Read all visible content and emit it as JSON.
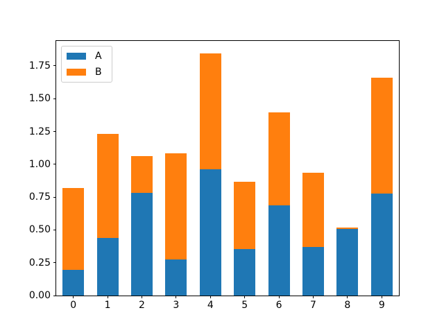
{
  "figure": {
    "background": "#ffffff",
    "spine_color": "#000000",
    "legend_border_color": "#cccccc"
  },
  "chart_data": {
    "type": "bar",
    "stacked": true,
    "title": "",
    "xlabel": "",
    "ylabel": "",
    "categories": [
      "0",
      "1",
      "2",
      "3",
      "4",
      "5",
      "6",
      "7",
      "8",
      "9"
    ],
    "series": [
      {
        "name": "A",
        "color": "#1f77b4",
        "values": [
          0.195,
          0.44,
          0.78,
          0.275,
          0.96,
          0.355,
          0.685,
          0.37,
          0.505,
          0.775
        ]
      },
      {
        "name": "B",
        "color": "#ff7f0e",
        "values": [
          0.625,
          0.79,
          0.28,
          0.81,
          0.885,
          0.51,
          0.71,
          0.565,
          0.015,
          0.885
        ]
      }
    ],
    "totals": [
      0.82,
      1.23,
      1.06,
      1.085,
      1.845,
      0.865,
      1.395,
      0.935,
      0.52,
      1.66
    ],
    "ylim": [
      0,
      1.94
    ],
    "yticks": [
      0,
      0.25,
      0.5,
      0.75,
      1.0,
      1.25,
      1.5,
      1.75
    ],
    "ytick_labels": [
      "0.00",
      "0.25",
      "0.50",
      "0.75",
      "1.00",
      "1.25",
      "1.50",
      "1.75"
    ],
    "grid": false,
    "legend": {
      "position": "upper left",
      "entries": [
        "A",
        "B"
      ]
    }
  }
}
